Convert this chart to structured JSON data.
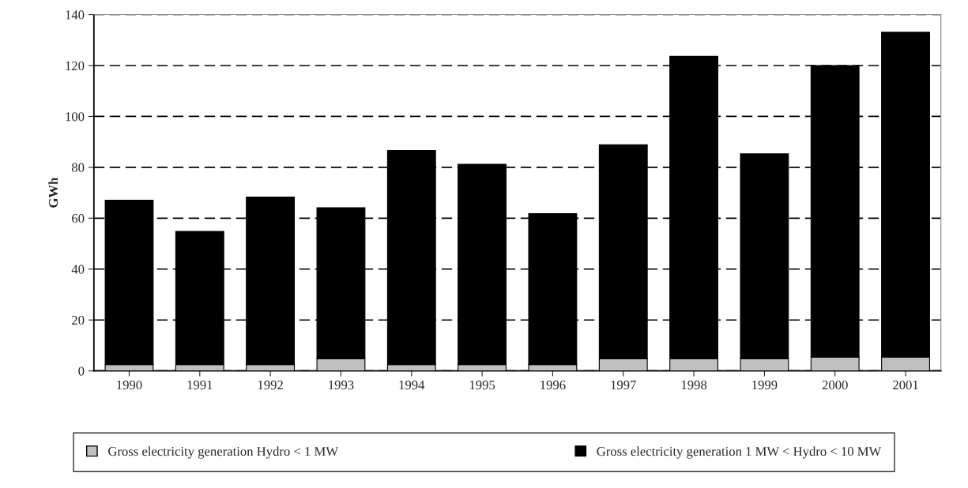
{
  "chart_data": {
    "type": "bar",
    "stacked": true,
    "ylabel": "GWh",
    "categories": [
      "1990",
      "1991",
      "1992",
      "1993",
      "1994",
      "1995",
      "1996",
      "1997",
      "1998",
      "1999",
      "2000",
      "2001"
    ],
    "series": [
      {
        "name": "Gross electricity generation Hydro < 1 MW",
        "color": "#c0c0c0",
        "values": [
          2.5,
          2.5,
          2.5,
          4.8,
          2.5,
          2.5,
          2.5,
          4.8,
          4.8,
          4.8,
          5.4,
          5.4
        ]
      },
      {
        "name": "Gross electricity generation 1 MW < Hydro < 10 MW",
        "color": "#000000",
        "values": [
          64.6,
          52.3,
          65.8,
          59.3,
          84.1,
          78.7,
          59.3,
          84.1,
          118.8,
          80.5,
          114.6,
          127.7
        ]
      }
    ],
    "ylim": [
      0,
      140
    ],
    "yticks": [
      0,
      20,
      40,
      60,
      80,
      100,
      120,
      140
    ],
    "grid": "y",
    "legend": "bottom"
  }
}
